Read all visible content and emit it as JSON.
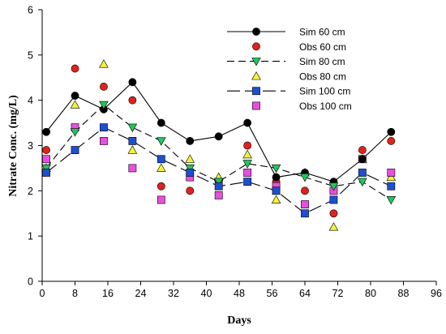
{
  "chart_data": {
    "type": "line",
    "xlabel": "Days",
    "ylabel": "Nitrate Conc. (mg/L)",
    "xlim": [
      0,
      96
    ],
    "ylim": [
      0,
      6
    ],
    "xticks": [
      0,
      8,
      16,
      24,
      32,
      40,
      48,
      56,
      64,
      72,
      80,
      88,
      96
    ],
    "yticks": [
      0,
      1,
      2,
      3,
      4,
      5,
      6
    ],
    "grid": false,
    "legend_position": "top-right",
    "series": [
      {
        "name": "Sim 60 cm",
        "kind": "simulated",
        "marker": "circle",
        "color": "#000000",
        "line": "solid",
        "points": [
          [
            1,
            3.3
          ],
          [
            8,
            4.1
          ],
          [
            15,
            3.8
          ],
          [
            22,
            4.4
          ],
          [
            29,
            3.5
          ],
          [
            36,
            3.1
          ],
          [
            43,
            3.2
          ],
          [
            50,
            3.5
          ],
          [
            57,
            2.3
          ],
          [
            64,
            2.4
          ],
          [
            71,
            2.2
          ],
          [
            78,
            2.7
          ],
          [
            85,
            3.3
          ]
        ]
      },
      {
        "name": "Obs 60 cm",
        "kind": "observed",
        "marker": "circle",
        "color": "#e3211c",
        "points": [
          [
            1,
            2.9
          ],
          [
            8,
            4.7
          ],
          [
            15,
            4.3
          ],
          [
            22,
            4.0
          ],
          [
            29,
            2.1
          ],
          [
            36,
            2.0
          ],
          [
            43,
            2.2
          ],
          [
            50,
            3.0
          ],
          [
            57,
            2.2
          ],
          [
            64,
            2.0
          ],
          [
            71,
            1.5
          ],
          [
            78,
            2.9
          ],
          [
            85,
            3.1
          ]
        ]
      },
      {
        "name": "Sim 80 cm",
        "kind": "simulated",
        "marker": "triangle-down",
        "color": "#22c55e",
        "line": "dashed",
        "points": [
          [
            1,
            2.5
          ],
          [
            8,
            3.3
          ],
          [
            15,
            3.9
          ],
          [
            22,
            3.4
          ],
          [
            29,
            3.1
          ],
          [
            36,
            2.5
          ],
          [
            43,
            2.2
          ],
          [
            50,
            2.6
          ],
          [
            57,
            2.5
          ],
          [
            64,
            2.3
          ],
          [
            71,
            2.1
          ],
          [
            78,
            2.2
          ],
          [
            85,
            1.8
          ]
        ]
      },
      {
        "name": "Obs 80 cm",
        "kind": "observed",
        "marker": "triangle-up",
        "color": "#f2f23a",
        "points": [
          [
            1,
            2.5
          ],
          [
            8,
            3.9
          ],
          [
            15,
            4.8
          ],
          [
            22,
            2.9
          ],
          [
            29,
            2.5
          ],
          [
            36,
            2.7
          ],
          [
            43,
            2.3
          ],
          [
            50,
            2.8
          ],
          [
            57,
            1.8
          ],
          [
            64,
            2.4
          ],
          [
            71,
            1.2
          ],
          [
            78,
            2.7
          ],
          [
            85,
            2.3
          ]
        ]
      },
      {
        "name": "Sim 100 cm",
        "kind": "simulated",
        "marker": "square",
        "color": "#1f4fd1",
        "line": "longdash",
        "points": [
          [
            1,
            2.4
          ],
          [
            8,
            2.9
          ],
          [
            15,
            3.4
          ],
          [
            22,
            3.1
          ],
          [
            29,
            2.7
          ],
          [
            36,
            2.4
          ],
          [
            43,
            2.1
          ],
          [
            50,
            2.2
          ],
          [
            57,
            2.0
          ],
          [
            64,
            1.5
          ],
          [
            71,
            1.8
          ],
          [
            78,
            2.4
          ],
          [
            85,
            2.1
          ]
        ]
      },
      {
        "name": "Obs 100 cm",
        "kind": "observed",
        "marker": "square",
        "color": "#e84fe0",
        "points": [
          [
            1,
            2.7
          ],
          [
            8,
            3.4
          ],
          [
            15,
            3.1
          ],
          [
            22,
            2.5
          ],
          [
            29,
            1.8
          ],
          [
            36,
            2.3
          ],
          [
            43,
            1.9
          ],
          [
            50,
            2.4
          ],
          [
            57,
            2.1
          ],
          [
            64,
            1.7
          ],
          [
            71,
            2.0
          ],
          [
            78,
            2.7
          ],
          [
            85,
            2.4
          ]
        ]
      }
    ]
  }
}
